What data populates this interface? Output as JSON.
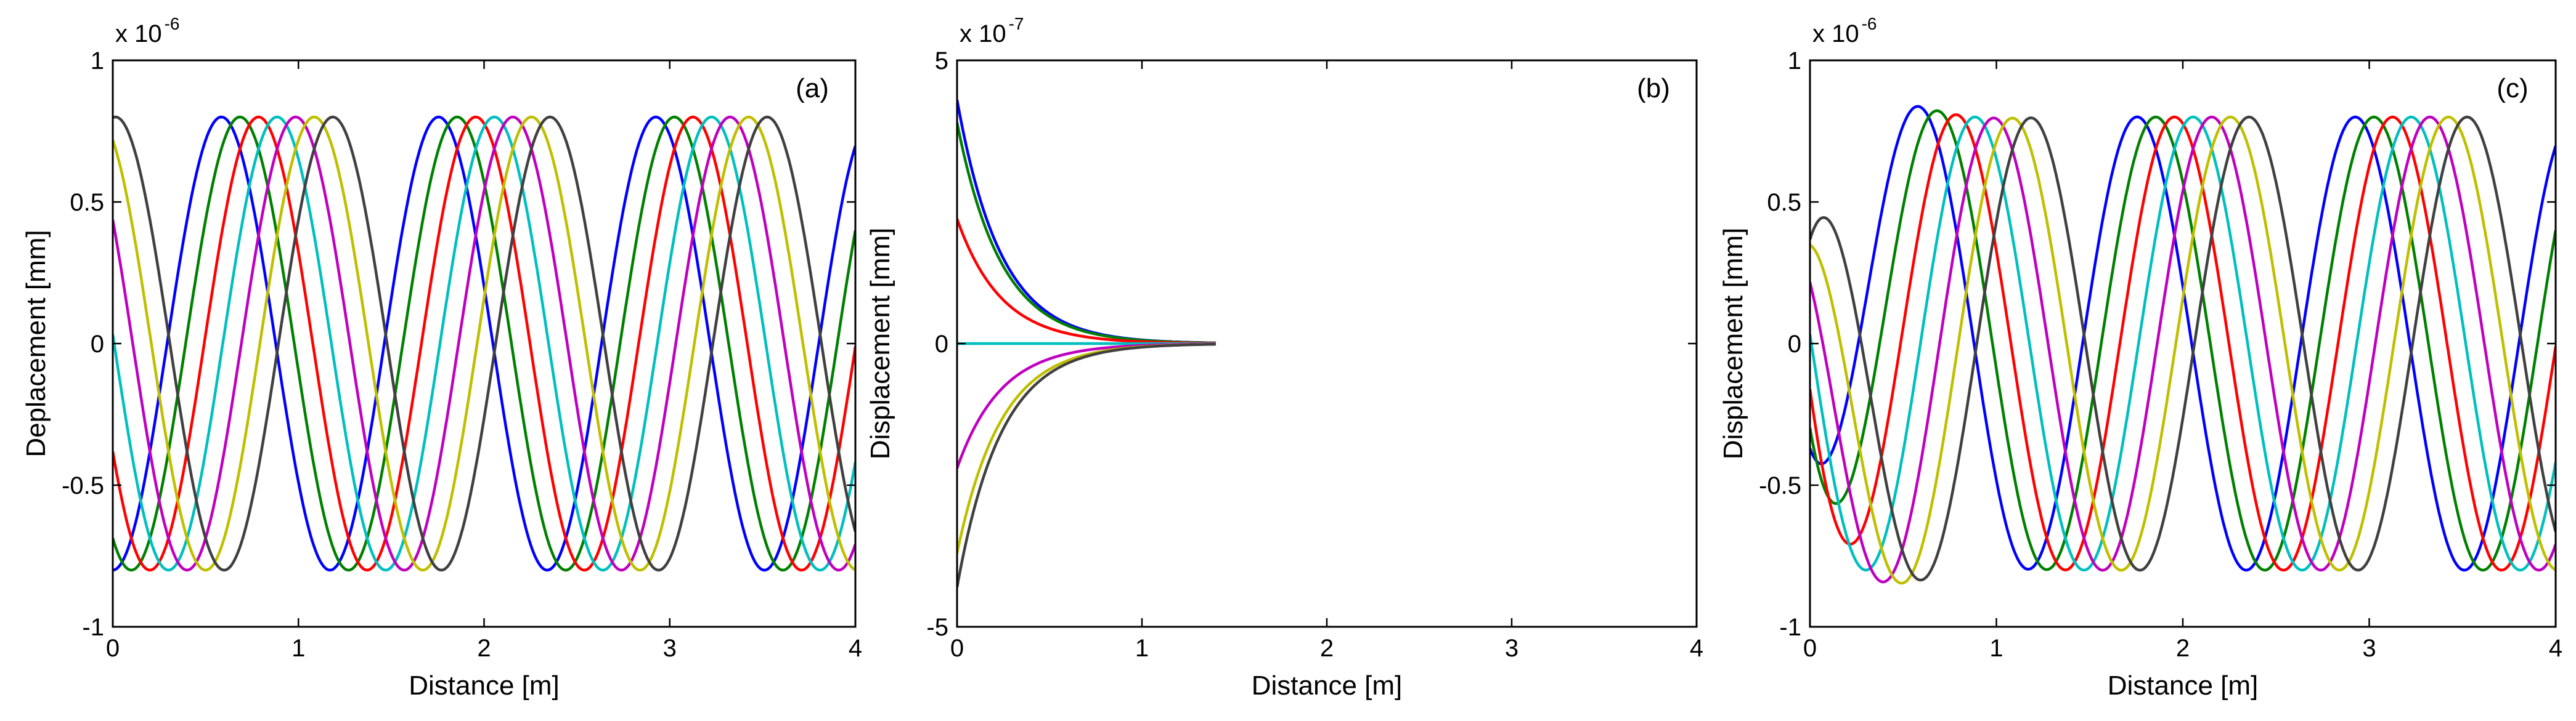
{
  "figure": {
    "colors": [
      "#0000ff",
      "#008000",
      "#ff0000",
      "#00bfbf",
      "#bf00bf",
      "#bfbf00",
      "#404040"
    ]
  },
  "chart_data": [
    {
      "type": "line",
      "panel_label": "(a)",
      "xlabel": "Distance [m]",
      "ylabel": "Deplacement [mm]",
      "multiplier": {
        "base": "x 10",
        "exponent": "-6"
      },
      "xlim": [
        0,
        4
      ],
      "ylim": [
        -1,
        1
      ],
      "xticks": [
        0,
        1,
        2,
        3,
        4
      ],
      "xtick_labels": [
        "0",
        "1",
        "2",
        "3",
        "4"
      ],
      "yticks": [
        -1,
        -0.5,
        0,
        0.5,
        1
      ],
      "ytick_labels": [
        "-1",
        "-0.5",
        "0",
        "0.5",
        "1"
      ],
      "grid": false,
      "legend": "none",
      "wave": {
        "amplitude": 0.8,
        "wavelength": 1.17
      },
      "series": [
        {
          "color": "#0000ff",
          "phase_shift": 0.0
        },
        {
          "color": "#008000",
          "phase_shift": 0.1
        },
        {
          "color": "#ff0000",
          "phase_shift": 0.2
        },
        {
          "color": "#00bfbf",
          "phase_shift": 0.3
        },
        {
          "color": "#bf00bf",
          "phase_shift": 0.4
        },
        {
          "color": "#bfbf00",
          "phase_shift": 0.5
        },
        {
          "color": "#404040",
          "phase_shift": 0.6
        }
      ]
    },
    {
      "type": "line",
      "panel_label": "(b)",
      "xlabel": "Distance [m]",
      "ylabel": "Displacement [mm]",
      "multiplier": {
        "base": "x 10",
        "exponent": "-7"
      },
      "xlim": [
        0,
        4
      ],
      "ylim": [
        -5,
        5
      ],
      "xticks": [
        0,
        1,
        2,
        3,
        4
      ],
      "xtick_labels": [
        "0",
        "1",
        "2",
        "3",
        "4"
      ],
      "yticks": [
        -5,
        0,
        5
      ],
      "ytick_labels": [
        "-5",
        "0",
        "5"
      ],
      "grid": false,
      "legend": "none",
      "decay": {
        "rate": 4.2,
        "end_x": 1.4
      },
      "series": [
        {
          "color": "#0000ff",
          "initial": 4.3
        },
        {
          "color": "#008000",
          "initial": 3.9
        },
        {
          "color": "#ff0000",
          "initial": 2.2
        },
        {
          "color": "#00bfbf",
          "initial": 0.0
        },
        {
          "color": "#bf00bf",
          "initial": -2.2
        },
        {
          "color": "#bfbf00",
          "initial": -3.7
        },
        {
          "color": "#404040",
          "initial": -4.3
        }
      ]
    },
    {
      "type": "line",
      "panel_label": "(c)",
      "xlabel": "Distance [m]",
      "ylabel": "Displacement [mm]",
      "multiplier": {
        "base": "x 10",
        "exponent": "-6"
      },
      "xlim": [
        0,
        4
      ],
      "ylim": [
        -1,
        1
      ],
      "xticks": [
        0,
        1,
        2,
        3,
        4
      ],
      "xtick_labels": [
        "0",
        "1",
        "2",
        "3",
        "4"
      ],
      "yticks": [
        -1,
        -0.5,
        0,
        0.5,
        1
      ],
      "ytick_labels": [
        "-1",
        "-0.5",
        "0",
        "0.5",
        "1"
      ],
      "grid": false,
      "legend": "none",
      "wave": {
        "amplitude": 0.8,
        "wavelength": 1.17
      },
      "evanescent": {
        "rate": 4.2
      },
      "series": [
        {
          "color": "#0000ff",
          "phase_shift": 0.0,
          "evanescent_initial": 0.43
        },
        {
          "color": "#008000",
          "phase_shift": 0.1,
          "evanescent_initial": 0.39
        },
        {
          "color": "#ff0000",
          "phase_shift": 0.2,
          "evanescent_initial": 0.22
        },
        {
          "color": "#00bfbf",
          "phase_shift": 0.3,
          "evanescent_initial": 0.0
        },
        {
          "color": "#bf00bf",
          "phase_shift": 0.4,
          "evanescent_initial": -0.22
        },
        {
          "color": "#bfbf00",
          "phase_shift": 0.5,
          "evanescent_initial": -0.37
        },
        {
          "color": "#404040",
          "phase_shift": 0.6,
          "evanescent_initial": -0.43
        }
      ]
    }
  ]
}
